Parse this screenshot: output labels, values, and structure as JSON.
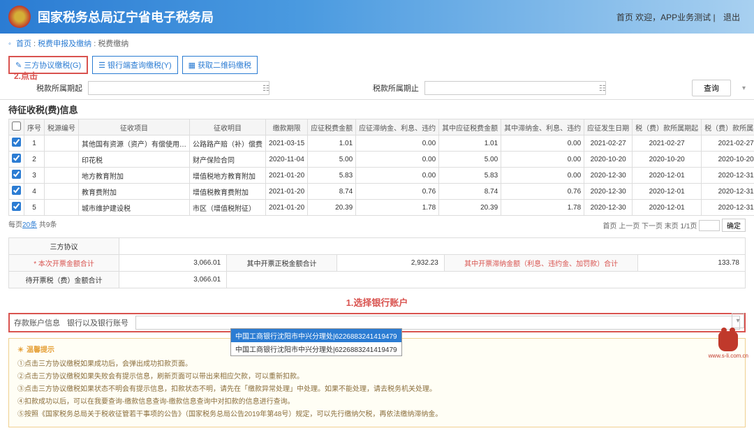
{
  "header": {
    "title": "国家税务总局辽宁省电子税务局",
    "welcome": "首页 欢迎，APP业务测试 |",
    "logout": "退出"
  },
  "breadcrumb": {
    "home": "首页",
    "l1": "税费申报及缴纳",
    "l2": "税费缴纳"
  },
  "tabs": {
    "t1": "三方协议缴税(G)",
    "t2": "银行端查询缴税(Y)",
    "t3": "获取二维码缴税"
  },
  "annotation1": "2.点击",
  "filter": {
    "label1": "税款所属期起",
    "label2": "税款所属期止",
    "query": "查询"
  },
  "section_title": "待征收税(费)信息",
  "columns": [
    "序号",
    "税源编号",
    "征收项目",
    "征收明目",
    "缴款期限",
    "应征税费金额",
    "应征滞纳金、利息、违约",
    "其中应征税费金额",
    "其中滞纳金、利息、违约",
    "应征发生日期",
    "税（费）款所属期起",
    "税（费）款所属期止"
  ],
  "rows": [
    {
      "c": true,
      "n": "1",
      "tax_src": "",
      "item": "其他国有资源（资产）有偿使用…",
      "detail": "公路路产赔（补）偿费",
      "deadline": "2021-03-15",
      "amt": "1.01",
      "late": "0.00",
      "amt2": "1.01",
      "late2": "0.00",
      "date": "2021-02-27",
      "from": "2021-02-27",
      "to": "2021-02-27"
    },
    {
      "c": true,
      "n": "2",
      "tax_src": "",
      "item": "印花税",
      "detail": "财产保险合同",
      "deadline": "2020-11-04",
      "amt": "5.00",
      "late": "0.00",
      "amt2": "5.00",
      "late2": "0.00",
      "date": "2020-10-20",
      "from": "2020-10-20",
      "to": "2020-10-20"
    },
    {
      "c": true,
      "n": "3",
      "tax_src": "",
      "item": "地方教育附加",
      "detail": "增值税地方教育附加",
      "deadline": "2021-01-20",
      "amt": "5.83",
      "late": "0.00",
      "amt2": "5.83",
      "late2": "0.00",
      "date": "2020-12-30",
      "from": "2020-12-01",
      "to": "2020-12-31"
    },
    {
      "c": true,
      "n": "4",
      "tax_src": "",
      "item": "教育费附加",
      "detail": "增值税教育费附加",
      "deadline": "2021-01-20",
      "amt": "8.74",
      "late": "0.76",
      "amt2": "8.74",
      "late2": "0.76",
      "date": "2020-12-30",
      "from": "2020-12-01",
      "to": "2020-12-31"
    },
    {
      "c": true,
      "n": "5",
      "tax_src": "",
      "item": "城市维护建设税",
      "detail": "市区（增值税附征）",
      "deadline": "2021-01-20",
      "amt": "20.39",
      "late": "1.78",
      "amt2": "20.39",
      "late2": "1.78",
      "date": "2020-12-30",
      "from": "2020-12-01",
      "to": "2020-12-31"
    }
  ],
  "pager": {
    "left_a": "20条",
    "left_b": " 共9条",
    "left_pre": "每页",
    "right": "首页 上一页 下一页 末页 1/1页",
    "confirm": "确定"
  },
  "summary": {
    "r1l": "三方协议",
    "r2l": "* 本次开票金额合计",
    "r2v": "3,066.01",
    "r2l2": "其中开票正税金额合计",
    "r2v2": "2,932.23",
    "r2l3": "其中开票滞纳金额（利息、违约金、加罚款）合计",
    "r2v3": "133.78",
    "r3l": "待开票税（费）金额合计",
    "r3v": "3,066.01"
  },
  "annotation2": "1.选择银行账户",
  "bank": {
    "label1": "存款账户信息",
    "label2": "银行以及银行账号",
    "selected": "中国工商银行沈阳市中兴分理处|6226883241419479",
    "option2": "中国工商银行沈阳市中兴分理处|6226883241419479"
  },
  "hints": {
    "title": "温馨提示",
    "h1": "①点击三方协议缴税如果成功后，会弹出成功扣款页面。",
    "h2": "②点击三方协议缴税如果失败会有提示信息，刷新页面可以带出来相应欠款，可以重新扣款。",
    "h3": "③点击三方协议缴税如果状态不明会有提示信息，扣款状态不明，请先在「缴款异常处理」中处理。如果不能处理，请去税务机关处理。",
    "h4": "④扣款成功以后，可以在我要查询-缴款信息查询-缴款信息查询中对扣款的信息进行查询。",
    "h5": "⑤按照《国家税务总局关于税收征管若干事项的公告》（国家税务总局公告2019年第48号）规定，可以先行缴纳欠税，再依法缴纳滞纳金。"
  },
  "bottom_url": "www.s-li.com.cn"
}
